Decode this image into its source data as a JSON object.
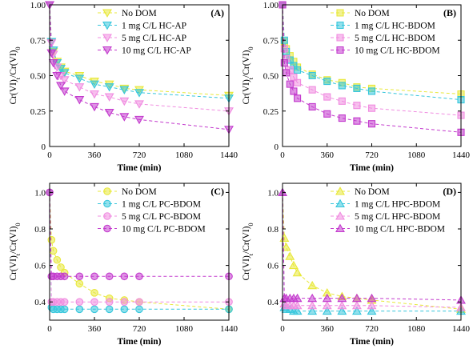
{
  "chart_data": [
    {
      "type": "line",
      "panel_label": "(A)",
      "xlabel": "Time (min)",
      "ylabel": "Cr(VI)t/Cr(VI)0",
      "xlim": [
        0,
        1440
      ],
      "ylim": [
        0,
        1.0
      ],
      "xticks": [
        0,
        360,
        720,
        1080,
        1440
      ],
      "yticks": [
        0,
        0.25,
        0.5,
        0.75,
        1.0
      ],
      "ytick_labels": [
        "0",
        "0.25",
        "0.50",
        "0.75",
        "1.00"
      ],
      "marker": "triangle-down",
      "legend_position": "top-right",
      "series": [
        {
          "name": "No DOM",
          "color": "#e8e839",
          "x": [
            0,
            15,
            30,
            60,
            90,
            120,
            240,
            360,
            480,
            600,
            720,
            1440
          ],
          "y": [
            1.0,
            0.74,
            0.67,
            0.6,
            0.56,
            0.53,
            0.5,
            0.46,
            0.44,
            0.41,
            0.4,
            0.36
          ]
        },
        {
          "name": "1 mg C/L HC-AP",
          "color": "#36c6dc",
          "x": [
            0,
            15,
            30,
            60,
            90,
            120,
            240,
            360,
            480,
            600,
            720,
            1440
          ],
          "y": [
            1.0,
            0.74,
            0.68,
            0.59,
            0.55,
            0.52,
            0.48,
            0.44,
            0.42,
            0.4,
            0.38,
            0.34
          ]
        },
        {
          "name": "5 mg C/L HC-AP",
          "color": "#f08ce0",
          "x": [
            0,
            15,
            30,
            60,
            90,
            120,
            240,
            360,
            480,
            600,
            720,
            1440
          ],
          "y": [
            1.0,
            0.73,
            0.65,
            0.56,
            0.5,
            0.47,
            0.42,
            0.37,
            0.35,
            0.32,
            0.3,
            0.25
          ]
        },
        {
          "name": "10 mg C/L HC-AP",
          "color": "#c33acd",
          "x": [
            0,
            15,
            30,
            60,
            90,
            120,
            240,
            360,
            480,
            600,
            720,
            1440
          ],
          "y": [
            1.0,
            0.66,
            0.59,
            0.5,
            0.43,
            0.39,
            0.33,
            0.28,
            0.24,
            0.21,
            0.19,
            0.12
          ]
        }
      ]
    },
    {
      "type": "line",
      "panel_label": "(B)",
      "xlabel": "Time (min)",
      "ylabel": "Cr(VI)t/Cr(VI)0",
      "xlim": [
        0,
        1440
      ],
      "ylim": [
        0,
        1.0
      ],
      "xticks": [
        0,
        360,
        720,
        1080,
        1440
      ],
      "yticks": [
        0,
        0.25,
        0.5,
        0.75,
        1.0
      ],
      "ytick_labels": [
        "0",
        "0.25",
        "0.50",
        "0.75",
        "1.00"
      ],
      "marker": "square",
      "legend_position": "top-right",
      "series": [
        {
          "name": "No DOM",
          "color": "#e8e839",
          "x": [
            0,
            15,
            30,
            60,
            90,
            120,
            240,
            360,
            480,
            600,
            720,
            1440
          ],
          "y": [
            1.0,
            0.74,
            0.69,
            0.64,
            0.6,
            0.56,
            0.51,
            0.47,
            0.45,
            0.42,
            0.41,
            0.37
          ]
        },
        {
          "name": "1 mg C/L HC-BDOM",
          "color": "#36c6dc",
          "x": [
            0,
            15,
            30,
            60,
            90,
            120,
            240,
            360,
            480,
            600,
            720,
            1440
          ],
          "y": [
            1.0,
            0.75,
            0.67,
            0.61,
            0.57,
            0.54,
            0.5,
            0.46,
            0.43,
            0.41,
            0.39,
            0.33
          ]
        },
        {
          "name": "5 mg C/L HC-BDOM",
          "color": "#f08ce0",
          "x": [
            0,
            15,
            30,
            60,
            90,
            120,
            240,
            360,
            480,
            600,
            720,
            1440
          ],
          "y": [
            1.0,
            0.69,
            0.62,
            0.54,
            0.49,
            0.45,
            0.4,
            0.35,
            0.32,
            0.29,
            0.27,
            0.22
          ]
        },
        {
          "name": "10 mg C/L HC-BDOM",
          "color": "#c33acd",
          "x": [
            0,
            15,
            30,
            60,
            90,
            120,
            240,
            360,
            480,
            600,
            720,
            1440
          ],
          "y": [
            1.0,
            0.59,
            0.52,
            0.44,
            0.39,
            0.34,
            0.28,
            0.23,
            0.2,
            0.18,
            0.16,
            0.1
          ]
        }
      ]
    },
    {
      "type": "line",
      "panel_label": "(C)",
      "xlabel": "Time (min)",
      "ylabel": "Cr(VI)t/Cr(VI)0",
      "xlim": [
        0,
        1440
      ],
      "ylim": [
        0.3,
        1.05
      ],
      "xticks": [
        0,
        360,
        720,
        1080,
        1440
      ],
      "yticks": [
        0.4,
        0.6,
        0.8,
        1.0
      ],
      "ytick_labels": [
        "0.4",
        "0.6",
        "0.8",
        "1.0"
      ],
      "marker": "circle",
      "legend_position": "top-right",
      "series": [
        {
          "name": "No DOM",
          "color": "#e8e839",
          "x": [
            0,
            15,
            30,
            60,
            90,
            120,
            240,
            360,
            480,
            600,
            720,
            1440
          ],
          "y": [
            1.0,
            0.74,
            0.68,
            0.63,
            0.59,
            0.56,
            0.5,
            0.45,
            0.42,
            0.41,
            0.4,
            0.36
          ]
        },
        {
          "name": "1 mg C/L PC-BDOM",
          "color": "#36c6dc",
          "x": [
            0,
            15,
            30,
            60,
            90,
            120,
            240,
            360,
            480,
            600,
            720,
            1440
          ],
          "y": [
            1.0,
            0.37,
            0.36,
            0.36,
            0.36,
            0.36,
            0.36,
            0.36,
            0.36,
            0.36,
            0.36,
            0.36
          ]
        },
        {
          "name": "5 mg C/L PC-BDOM",
          "color": "#f08ce0",
          "x": [
            0,
            15,
            30,
            60,
            90,
            120,
            240,
            360,
            480,
            600,
            720,
            1440
          ],
          "y": [
            1.0,
            0.4,
            0.4,
            0.4,
            0.4,
            0.4,
            0.4,
            0.4,
            0.4,
            0.4,
            0.4,
            0.4
          ]
        },
        {
          "name": "10 mg C/L PC-BDOM",
          "color": "#c33acd",
          "x": [
            0,
            15,
            30,
            60,
            90,
            120,
            240,
            360,
            480,
            600,
            720,
            1440
          ],
          "y": [
            1.0,
            0.54,
            0.54,
            0.54,
            0.54,
            0.54,
            0.54,
            0.54,
            0.54,
            0.54,
            0.54,
            0.54
          ]
        }
      ]
    },
    {
      "type": "line",
      "panel_label": "(D)",
      "xlabel": "Time (min)",
      "ylabel": "Cr(VI)t/Cr(VI)0",
      "xlim": [
        0,
        1440
      ],
      "ylim": [
        0.3,
        1.05
      ],
      "xticks": [
        0,
        360,
        720,
        1080,
        1440
      ],
      "yticks": [
        0.4,
        0.6,
        0.8,
        1.0
      ],
      "ytick_labels": [
        "0.4",
        "0.6",
        "0.8",
        "1.0"
      ],
      "marker": "triangle-up",
      "legend_position": "top-right",
      "series": [
        {
          "name": "No DOM",
          "color": "#e8e839",
          "x": [
            0,
            15,
            30,
            60,
            90,
            120,
            240,
            360,
            480,
            600,
            720,
            1440
          ],
          "y": [
            1.0,
            0.75,
            0.7,
            0.65,
            0.6,
            0.56,
            0.49,
            0.45,
            0.43,
            0.42,
            0.41,
            0.36
          ]
        },
        {
          "name": "1 mg C/L HPC-BDOM",
          "color": "#36c6dc",
          "x": [
            0,
            15,
            30,
            60,
            90,
            120,
            240,
            360,
            480,
            600,
            720,
            1440
          ],
          "y": [
            1.0,
            0.37,
            0.36,
            0.36,
            0.35,
            0.35,
            0.35,
            0.35,
            0.35,
            0.35,
            0.35,
            0.35
          ]
        },
        {
          "name": "5 mg C/L HPC-BDOM",
          "color": "#f08ce0",
          "x": [
            0,
            15,
            30,
            60,
            90,
            120,
            240,
            360,
            480,
            600,
            720,
            1440
          ],
          "y": [
            1.0,
            0.39,
            0.38,
            0.38,
            0.38,
            0.38,
            0.38,
            0.38,
            0.38,
            0.38,
            0.38,
            0.37
          ]
        },
        {
          "name": "10 mg C/L HPC-BDOM",
          "color": "#c33acd",
          "x": [
            0,
            15,
            30,
            60,
            90,
            120,
            240,
            360,
            480,
            600,
            720,
            1440
          ],
          "y": [
            1.0,
            0.42,
            0.42,
            0.42,
            0.42,
            0.42,
            0.42,
            0.42,
            0.42,
            0.42,
            0.42,
            0.41
          ]
        }
      ]
    }
  ]
}
